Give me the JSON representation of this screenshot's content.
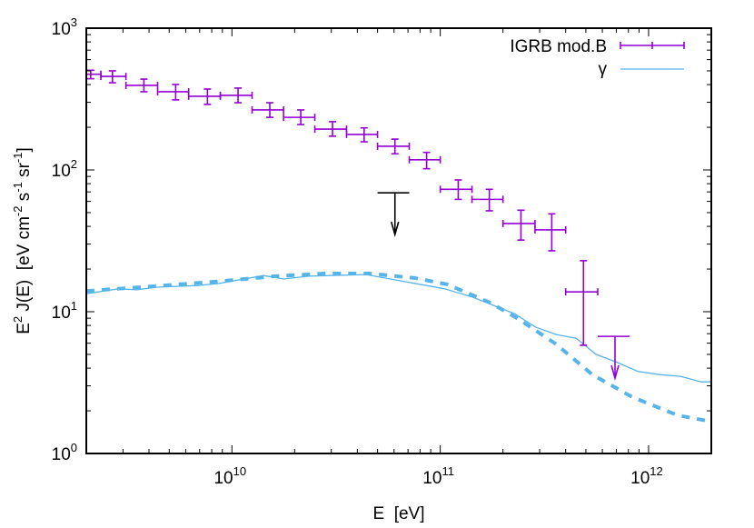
{
  "chart_data": {
    "type": "scatter",
    "title": "",
    "xlabel": "E  [eV]",
    "ylabel": {
      "main": "E",
      "sup1": "2",
      "rest1": " J(E)  [eV cm",
      "sup2": "-2",
      "rest2": " s",
      "sup3": "-1",
      "rest3": " sr",
      "sup4": "-1",
      "rest4": "]"
    },
    "xscale": "log",
    "yscale": "log",
    "xlim": [
      2000000000.0,
      2000000000000.0
    ],
    "ylim": [
      1,
      1000
    ],
    "grid": false,
    "legend_placement": "top-right",
    "x_ticks": [
      {
        "base": "10",
        "exp": "10",
        "value": 10000000000.0
      },
      {
        "base": "10",
        "exp": "11",
        "value": 100000000000.0
      },
      {
        "base": "10",
        "exp": "12",
        "value": 1000000000000.0
      }
    ],
    "y_ticks": [
      {
        "base": "10",
        "exp": "0",
        "value": 1
      },
      {
        "base": "10",
        "exp": "1",
        "value": 10
      },
      {
        "base": "10",
        "exp": "2",
        "value": 100
      },
      {
        "base": "10",
        "exp": "3",
        "value": 1000
      }
    ],
    "colors": {
      "igrb": "#9400d3",
      "gamma": "#56b4e9",
      "upper_limit_black": "#000000"
    },
    "series": [
      {
        "name": "IGRB mod.B",
        "kind": "errorbars",
        "points": [
          {
            "x": 2100000000.0,
            "xlo": 1900000000.0,
            "xhi": 2350000000.0,
            "y": 473,
            "ylo": 440,
            "yhi": 505
          },
          {
            "x": 2670000000.0,
            "xlo": 2350000000.0,
            "xhi": 3100000000.0,
            "y": 457,
            "ylo": 412,
            "yhi": 500
          },
          {
            "x": 3780000000.0,
            "xlo": 3100000000.0,
            "xhi": 4400000000.0,
            "y": 395,
            "ylo": 356,
            "yhi": 437
          },
          {
            "x": 5370000000.0,
            "xlo": 4400000000.0,
            "xhi": 6200000000.0,
            "y": 356,
            "ylo": 312,
            "yhi": 401
          },
          {
            "x": 7630000000.0,
            "xlo": 6200000000.0,
            "xhi": 8800000000.0,
            "y": 331,
            "ylo": 290,
            "yhi": 372
          },
          {
            "x": 10700000000.0,
            "xlo": 8800000000.0,
            "xhi": 12500000000.0,
            "y": 336,
            "ylo": 298,
            "yhi": 378
          },
          {
            "x": 15200000000.0,
            "xlo": 12500000000.0,
            "xhi": 17700000000.0,
            "y": 265,
            "ylo": 235,
            "yhi": 298
          },
          {
            "x": 21400000000.0,
            "xlo": 17700000000.0,
            "xhi": 25000000000.0,
            "y": 235,
            "ylo": 209,
            "yhi": 265
          },
          {
            "x": 30400000000.0,
            "xlo": 25000000000.0,
            "xhi": 35500000000.0,
            "y": 194,
            "ylo": 173,
            "yhi": 219
          },
          {
            "x": 43100000000.0,
            "xlo": 35500000000.0,
            "xhi": 50000000000.0,
            "y": 178,
            "ylo": 158,
            "yhi": 198
          },
          {
            "x": 60600000000.0,
            "xlo": 50000000000.0,
            "xhi": 71000000000.0,
            "y": 147,
            "ylo": 130,
            "yhi": 165
          },
          {
            "x": 86000000000.0,
            "xlo": 71000000000.0,
            "xhi": 100000000000.0,
            "y": 118,
            "ylo": 102,
            "yhi": 133
          },
          {
            "x": 122000000000.0,
            "xlo": 100000000000.0,
            "xhi": 142000000000.0,
            "y": 73,
            "ylo": 62,
            "yhi": 85
          },
          {
            "x": 172000000000.0,
            "xlo": 142000000000.0,
            "xhi": 200000000000.0,
            "y": 62,
            "ylo": 51.5,
            "yhi": 73
          },
          {
            "x": 244000000000.0,
            "xlo": 200000000000.0,
            "xhi": 285000000000.0,
            "y": 41.9,
            "ylo": 32,
            "yhi": 52
          },
          {
            "x": 343000000000.0,
            "xlo": 285000000000.0,
            "xhi": 400000000000.0,
            "y": 37.8,
            "ylo": 26.9,
            "yhi": 49
          },
          {
            "x": 487000000000.0,
            "xlo": 400000000000.0,
            "xhi": 570000000000.0,
            "y": 13.8,
            "ylo": 5.8,
            "yhi": 22.9
          }
        ],
        "upper_limits": [
          {
            "x": 690000000000.0,
            "xlo": 570000000000.0,
            "xhi": 810000000000.0,
            "y": 6.7
          }
        ]
      },
      {
        "kind": "upper_limit_black",
        "upper_limits": [
          {
            "x": 60600000000.0,
            "xlo": 50000000000.0,
            "xhi": 71000000000.0,
            "y": 69
          }
        ]
      },
      {
        "name": "γ",
        "kind": "line",
        "style": "solid",
        "x": [
          2000000000.0,
          2860000000.0,
          3490000000.0,
          4390000000.0,
          6830000000.0,
          8600000000.0,
          14200000000.0,
          17700000000.0,
          23400000000.0,
          44000000000.0,
          57600000000.0,
          105000000000.0,
          142000000000.0,
          227000000000.0,
          286000000000.0,
          360000000000.0,
          449000000000.0,
          560000000000.0,
          705000000000.0,
          887000000000.0,
          1130000000000.0,
          1420000000000.0,
          1790000000000.0,
          2000000000000.0
        ],
        "y": [
          13.4,
          14.5,
          14.3,
          14.9,
          15.3,
          15.8,
          18.0,
          17.0,
          17.8,
          18.3,
          17.0,
          14.5,
          12.7,
          9.7,
          7.8,
          6.9,
          6.5,
          5.0,
          4.4,
          3.8,
          3.6,
          3.5,
          3.2,
          3.2
        ]
      },
      {
        "kind": "line",
        "style": "dashed",
        "x": [
          2000000000.0,
          4140000000.0,
          8350000000.0,
          16200000000.0,
          27800000000.0,
          45800000000.0,
          75500000000.0,
          108000000000.0,
          173000000000.0,
          234000000000.0,
          360000000000.0,
          537000000000.0,
          835000000000.0,
          1380000000000.0,
          2000000000000.0
        ],
        "y": [
          14.0,
          15.1,
          16.3,
          17.8,
          18.6,
          18.6,
          17.3,
          15.6,
          11.6,
          9.0,
          5.9,
          3.6,
          2.5,
          1.86,
          1.68
        ]
      }
    ]
  }
}
